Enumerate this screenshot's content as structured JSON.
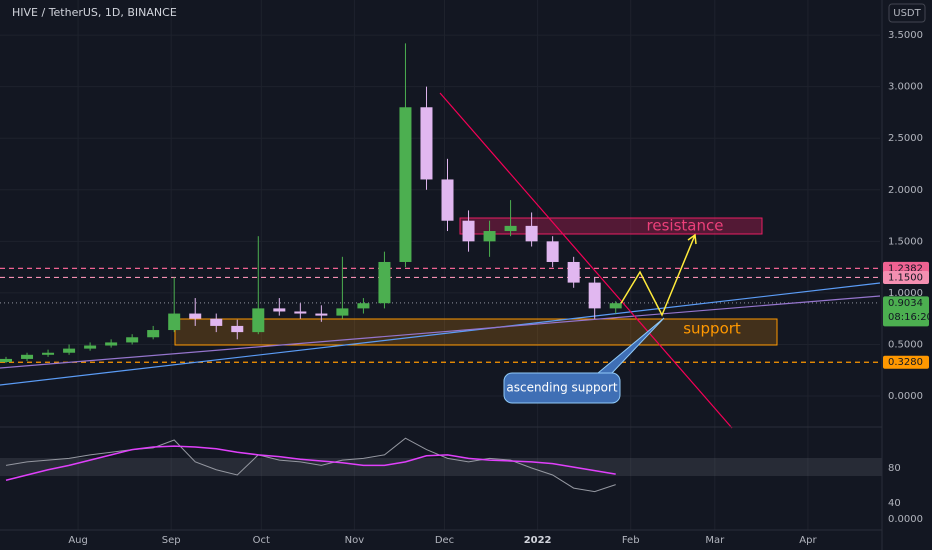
{
  "chart_data": {
    "type": "candlestick",
    "title": "HIVE / TetherUS, 1D, BINANCE",
    "currency": "USDT",
    "x": [
      -24,
      -17,
      -10,
      -3,
      4,
      11,
      18,
      25,
      32,
      39,
      46,
      53,
      60,
      67,
      74,
      81,
      88,
      95,
      102,
      109,
      116,
      123,
      130,
      137,
      144,
      151,
      158,
      165,
      172,
      179
    ],
    "open": [
      0.33,
      0.36,
      0.4,
      0.42,
      0.46,
      0.49,
      0.52,
      0.57,
      0.64,
      0.8,
      0.75,
      0.68,
      0.62,
      0.85,
      0.82,
      0.8,
      0.78,
      0.85,
      0.9,
      1.3,
      2.8,
      2.1,
      1.7,
      1.5,
      1.6,
      1.65,
      1.5,
      1.3,
      1.1,
      0.85
    ],
    "high": [
      0.38,
      0.42,
      0.45,
      0.5,
      0.52,
      0.55,
      0.6,
      0.68,
      1.15,
      0.95,
      0.8,
      0.74,
      1.55,
      0.95,
      0.9,
      0.88,
      1.35,
      0.95,
      1.4,
      3.42,
      3.0,
      2.3,
      1.8,
      1.7,
      1.9,
      1.78,
      1.55,
      1.35,
      1.15,
      0.92
    ],
    "low": [
      0.32,
      0.34,
      0.38,
      0.4,
      0.44,
      0.47,
      0.5,
      0.55,
      0.62,
      0.68,
      0.62,
      0.55,
      0.6,
      0.78,
      0.75,
      0.72,
      0.75,
      0.8,
      0.85,
      1.25,
      2.0,
      1.6,
      1.4,
      1.35,
      1.55,
      1.45,
      1.25,
      1.05,
      0.75,
      0.8
    ],
    "close": [
      0.36,
      0.4,
      0.42,
      0.46,
      0.49,
      0.52,
      0.57,
      0.64,
      0.8,
      0.75,
      0.68,
      0.62,
      0.85,
      0.82,
      0.8,
      0.78,
      0.85,
      0.9,
      1.3,
      2.8,
      2.1,
      1.7,
      1.5,
      1.6,
      1.65,
      1.5,
      1.3,
      1.1,
      0.85,
      0.9
    ],
    "up_color": "#4caf50",
    "down_color": "#e1b7f0",
    "xlim": [
      -26,
      267
    ],
    "ylim": [
      -0.3,
      3.84
    ],
    "xticks": [
      {
        "value": 0,
        "label": "Aug"
      },
      {
        "value": 31,
        "label": "Sep"
      },
      {
        "value": 61,
        "label": "Oct"
      },
      {
        "value": 92,
        "label": "Nov"
      },
      {
        "value": 122,
        "label": "Dec"
      },
      {
        "value": 153,
        "label": "2022"
      },
      {
        "value": 184,
        "label": "Feb"
      },
      {
        "value": 212,
        "label": "Mar"
      },
      {
        "value": 243,
        "label": "Apr"
      }
    ],
    "yticks": [
      {
        "value": 0,
        "label": "0.0000"
      },
      {
        "value": 0.5,
        "label": "0.5000"
      },
      {
        "value": 1,
        "label": "1.0000"
      },
      {
        "value": 1.5,
        "label": "1.5000"
      },
      {
        "value": 2,
        "label": "2.0000"
      },
      {
        "value": 2.5,
        "label": "2.5000"
      },
      {
        "value": 3,
        "label": "3.0000"
      },
      {
        "value": 3.5,
        "label": "3.5000"
      }
    ],
    "levels": [
      {
        "value": 1.2382,
        "label": "1.2382",
        "color": "#f06292"
      },
      {
        "value": 1.15,
        "label": "1.1500",
        "color": "#f48fb1"
      },
      {
        "value": 0.9034,
        "label": "0.9034",
        "color": "#4caf50"
      },
      {
        "value": 0.328,
        "label": "0.3280",
        "color": "#ff9800"
      }
    ],
    "countdown": "08:16:20",
    "annotations": {
      "resistance": "resistance",
      "support": "support",
      "ascending": "ascending support"
    },
    "indicator": {
      "ylim": [
        -2.3,
        123.4
      ],
      "yticks": [
        40,
        80
      ],
      "bottom_label": "0.0000",
      "series": [
        {
          "color": "#9598a1",
          "values": [
            83,
            87,
            89,
            91,
            95,
            98,
            101,
            103,
            112,
            87,
            78,
            72,
            95,
            89,
            87,
            83,
            89,
            91,
            95,
            114,
            101,
            91,
            87,
            91,
            89,
            80,
            72,
            57,
            53,
            61
          ]
        },
        {
          "color": "#e040fb",
          "values": [
            66,
            72,
            78,
            83,
            89,
            95,
            101,
            104,
            105,
            104,
            102,
            98,
            95,
            93,
            90,
            88,
            86,
            83,
            83,
            87,
            94,
            95,
            91,
            89,
            88,
            87,
            85,
            81,
            77,
            73
          ]
        }
      ]
    }
  }
}
